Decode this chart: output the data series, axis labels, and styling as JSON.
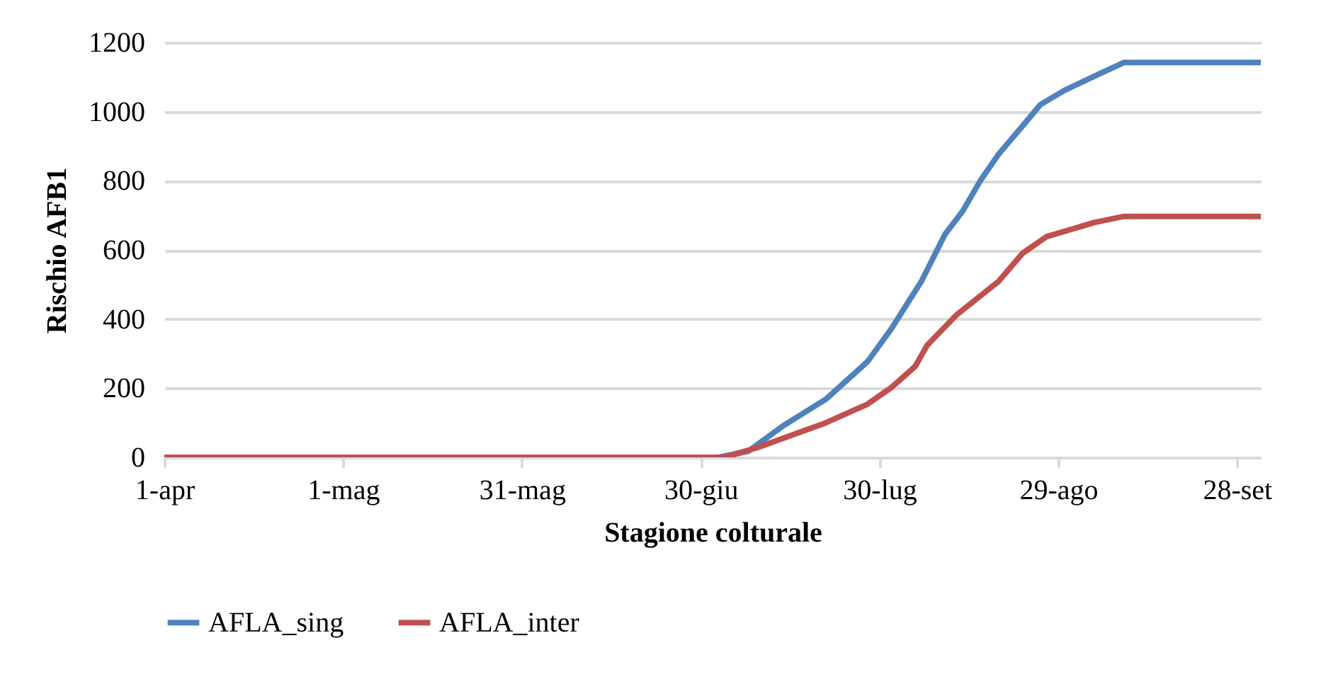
{
  "chart_data": {
    "type": "line",
    "xlabel": "Stagione colturale",
    "ylabel": "Rischio AFB1",
    "xlim": [
      "--04-01",
      "--10-02"
    ],
    "ylim": [
      0,
      1200
    ],
    "yticks": [
      0,
      200,
      400,
      600,
      800,
      1000,
      1200
    ],
    "xticks": [
      {
        "value": "--04-01",
        "label": "1-apr"
      },
      {
        "value": "--05-01",
        "label": "1-mag"
      },
      {
        "value": "--05-31",
        "label": "31-mag"
      },
      {
        "value": "--06-30",
        "label": "30-giu"
      },
      {
        "value": "--07-30",
        "label": "30-lug"
      },
      {
        "value": "--08-29",
        "label": "29-ago"
      },
      {
        "value": "--09-28",
        "label": "28-set"
      }
    ],
    "grid": "y",
    "legend": "bottom",
    "marker": "none",
    "line_style": "solid",
    "series": [
      {
        "name": "AFLA_sing",
        "color": "#4f81bd",
        "x": [
          "--04-01",
          "--07-03",
          "--07-08",
          "--07-14",
          "--07-21",
          "--07-28",
          "--08-01",
          "--08-06",
          "--08-10",
          "--08-13",
          "--08-16",
          "--08-19",
          "--08-23",
          "--08-26",
          "--08-30",
          "--09-04",
          "--09-09",
          "--10-02"
        ],
        "values": [
          0,
          0,
          18,
          93,
          168,
          277,
          372,
          508,
          645,
          713,
          802,
          877,
          958,
          1020,
          1061,
          1102,
          1142,
          1142
        ]
      },
      {
        "name": "AFLA_inter",
        "color": "#c0504d",
        "x": [
          "--04-01",
          "--07-04",
          "--07-10",
          "--07-21",
          "--07-28",
          "--08-01",
          "--08-05",
          "--08-07",
          "--08-12",
          "--08-19",
          "--08-23",
          "--08-27",
          "--09-04",
          "--09-09",
          "--10-02"
        ],
        "values": [
          0,
          0,
          31,
          100,
          154,
          202,
          263,
          324,
          413,
          509,
          590,
          638,
          679,
          697,
          697
        ]
      }
    ]
  }
}
